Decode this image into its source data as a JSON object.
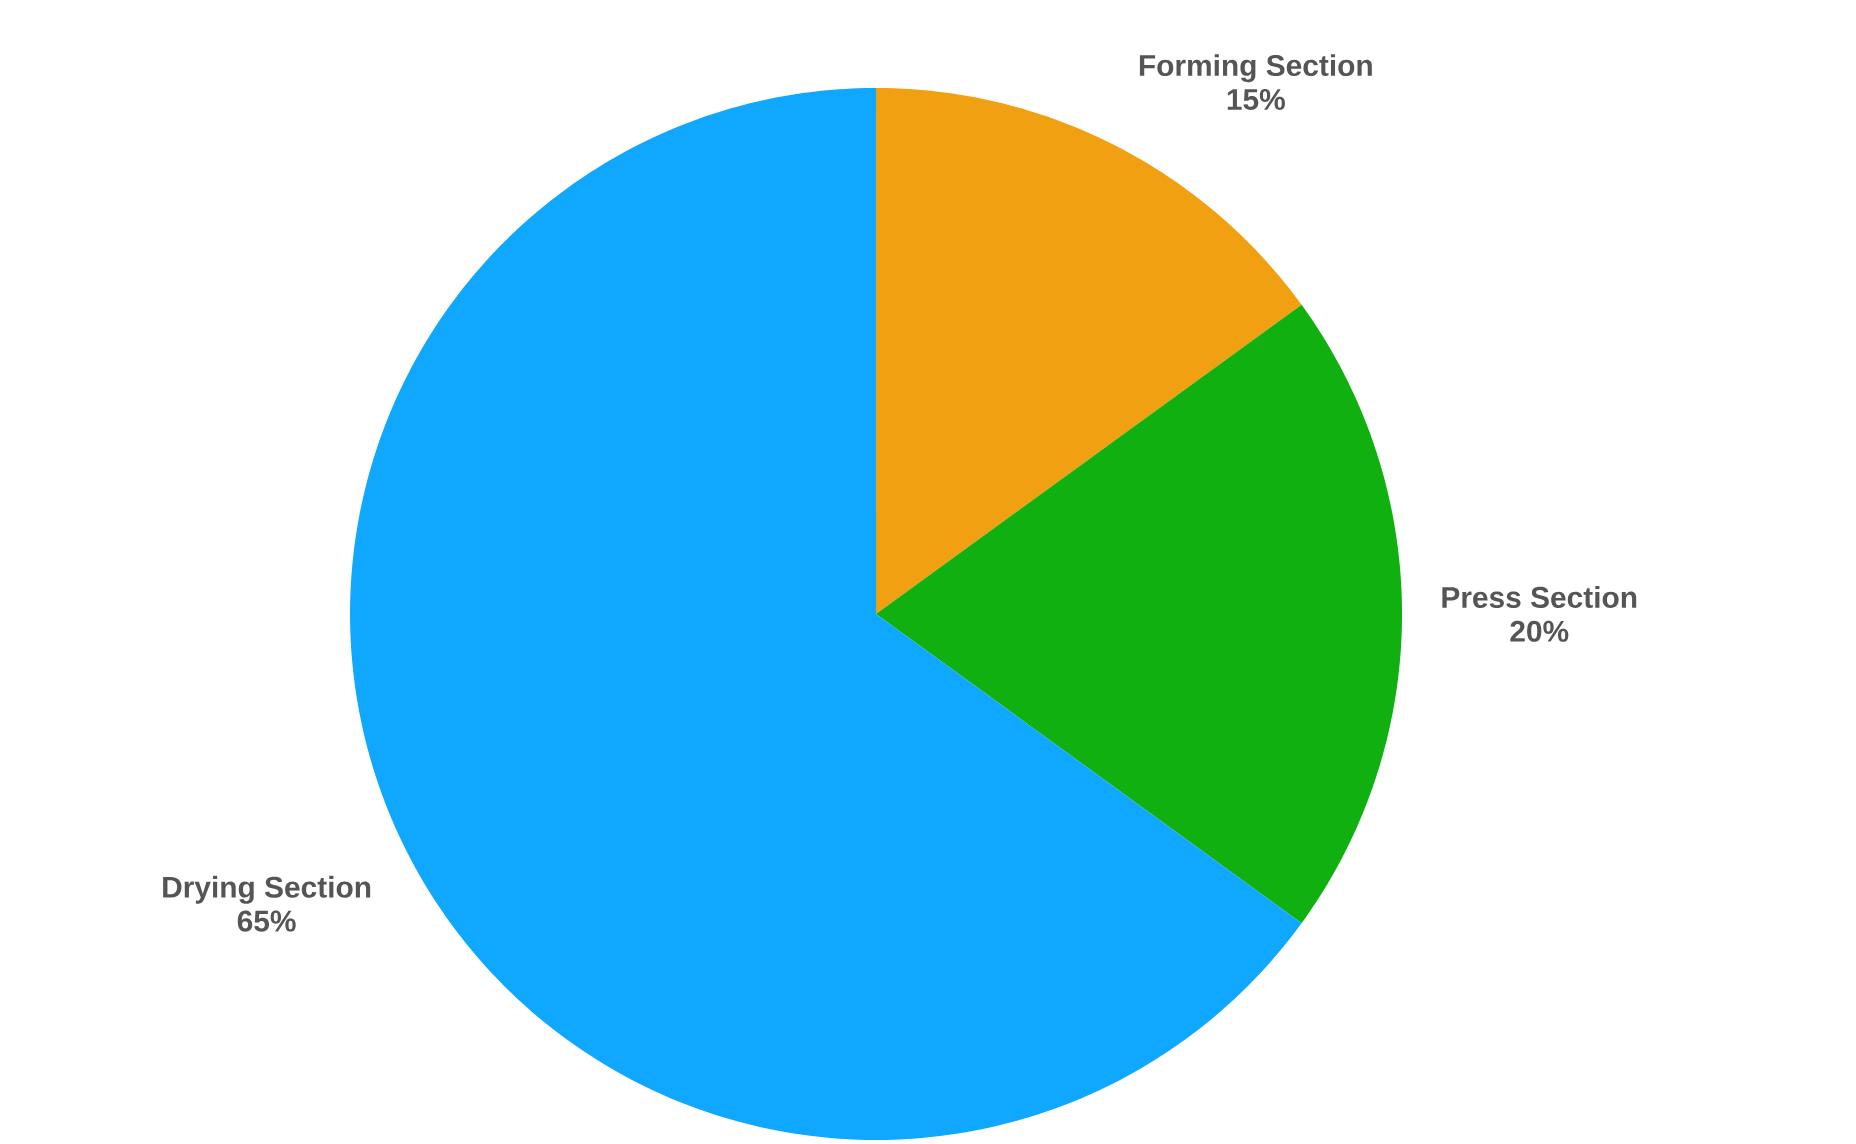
{
  "chart_data": {
    "type": "pie",
    "categories": [
      "Forming Section",
      "Press Section",
      "Drying Section"
    ],
    "values": [
      15,
      20,
      65
    ],
    "value_labels": [
      "15%",
      "20%",
      "65%"
    ],
    "colors": [
      "#f0a010",
      "#10b010",
      "#10a8ff"
    ]
  }
}
